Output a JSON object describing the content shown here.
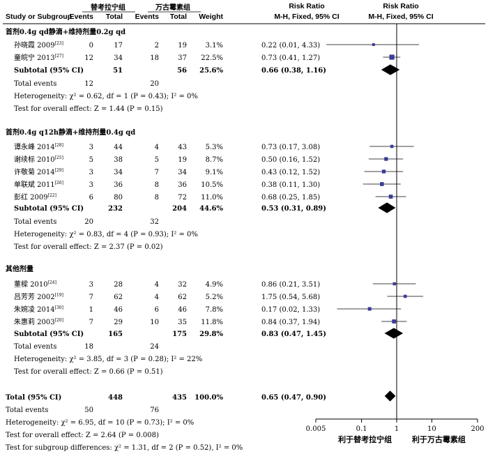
{
  "chart_data": {
    "type": "forest",
    "columns": {
      "top_left_group": "替考拉宁组",
      "top_right_group": "万古霉素组",
      "study": "Study or Subgroup",
      "events1": "Events",
      "total1": "Total",
      "events2": "Events",
      "total2": "Total",
      "weight": "Weight",
      "rr_text_top": "Risk Ratio",
      "rr_text_sub": "M-H, Fixed, 95% CI",
      "rr_plot_top": "Risk Ratio",
      "rr_plot_sub": "M-H, Fixed, 95% CI"
    },
    "subgroups": [
      {
        "title": "首剂0.4g qd静滴+维持剂量0.2g qd",
        "studies": [
          {
            "name": "孙晓霞 2009",
            "ref": "[23]",
            "e1": "0",
            "n1": "17",
            "e2": "2",
            "n2": "19",
            "weight": "3.1%",
            "ci": "0.22 (0.01, 4.33)",
            "rr": 0.22,
            "lo": 0.01,
            "hi": 4.33,
            "w": 3.1
          },
          {
            "name": "童皖宁 2013",
            "ref": "[27]",
            "e1": "12",
            "n1": "34",
            "e2": "18",
            "n2": "37",
            "weight": "22.5%",
            "ci": "0.73 (0.41, 1.27)",
            "rr": 0.73,
            "lo": 0.41,
            "hi": 1.27,
            "w": 22.5
          }
        ],
        "subtotal": {
          "label": "Subtotal (95% CI)",
          "n1": "51",
          "n2": "56",
          "weight": "25.6%",
          "ci": "0.66 (0.38, 1.16)",
          "rr": 0.66,
          "lo": 0.38,
          "hi": 1.16
        },
        "total_events": {
          "label": "Total events",
          "e1": "12",
          "e2": "20"
        },
        "heterogeneity": "Heterogeneity: χ² = 0.62, df = 1 (P = 0.43); I² = 0%",
        "overall_effect": "Test for overall effect: Z = 1.44 (P = 0.15)"
      },
      {
        "title": "首剂0.4g q12h静滴+维持剂量0.4g qd",
        "studies": [
          {
            "name": "谭永峰 2014",
            "ref": "[28]",
            "e1": "3",
            "n1": "44",
            "e2": "4",
            "n2": "43",
            "weight": "5.3%",
            "ci": "0.73 (0.17, 3.08)",
            "rr": 0.73,
            "lo": 0.17,
            "hi": 3.08,
            "w": 5.3
          },
          {
            "name": "谢续标 2010",
            "ref": "[25]",
            "e1": "5",
            "n1": "38",
            "e2": "5",
            "n2": "19",
            "weight": "8.7%",
            "ci": "0.50 (0.16, 1.52)",
            "rr": 0.5,
            "lo": 0.16,
            "hi": 1.52,
            "w": 8.7
          },
          {
            "name": "许敬菊 2014",
            "ref": "[29]",
            "e1": "3",
            "n1": "34",
            "e2": "7",
            "n2": "34",
            "weight": "9.1%",
            "ci": "0.43 (0.12, 1.52)",
            "rr": 0.43,
            "lo": 0.12,
            "hi": 1.52,
            "w": 9.1
          },
          {
            "name": "单联斌 2011",
            "ref": "[26]",
            "e1": "3",
            "n1": "36",
            "e2": "8",
            "n2": "36",
            "weight": "10.5%",
            "ci": "0.38 (0.11, 1.30)",
            "rr": 0.38,
            "lo": 0.11,
            "hi": 1.3,
            "w": 10.5
          },
          {
            "name": "彭红 2009",
            "ref": "[22]",
            "e1": "6",
            "n1": "80",
            "e2": "8",
            "n2": "72",
            "weight": "11.0%",
            "ci": "0.68 (0.25, 1.85)",
            "rr": 0.68,
            "lo": 0.25,
            "hi": 1.85,
            "w": 11.0
          }
        ],
        "subtotal": {
          "label": "Subtotal (95% CI)",
          "n1": "232",
          "n2": "204",
          "weight": "44.6%",
          "ci": "0.53 (0.31, 0.89)",
          "rr": 0.53,
          "lo": 0.31,
          "hi": 0.89
        },
        "total_events": {
          "label": "Total events",
          "e1": "20",
          "e2": "32"
        },
        "heterogeneity": "Heterogeneity: χ² = 0.83, df = 4 (P = 0.93); I² = 0%",
        "overall_effect": "Test for overall effect: Z = 2.37 (P = 0.02)"
      },
      {
        "title": "其他剂量",
        "studies": [
          {
            "name": "董樑 2010",
            "ref": "[24]",
            "e1": "3",
            "n1": "28",
            "e2": "4",
            "n2": "32",
            "weight": "4.9%",
            "ci": "0.86 (0.21, 3.51)",
            "rr": 0.86,
            "lo": 0.21,
            "hi": 3.51,
            "w": 4.9
          },
          {
            "name": "吕芳芳 2002",
            "ref": "[19]",
            "e1": "7",
            "n1": "62",
            "e2": "4",
            "n2": "62",
            "weight": "5.2%",
            "ci": "1.75 (0.54, 5.68)",
            "rr": 1.75,
            "lo": 0.54,
            "hi": 5.68,
            "w": 5.2
          },
          {
            "name": "朱婉凌 2014",
            "ref": "[30]",
            "e1": "1",
            "n1": "46",
            "e2": "6",
            "n2": "46",
            "weight": "7.8%",
            "ci": "0.17 (0.02, 1.33)",
            "rr": 0.17,
            "lo": 0.02,
            "hi": 1.33,
            "w": 7.8
          },
          {
            "name": "朱惠莉 2003",
            "ref": "[20]",
            "e1": "7",
            "n1": "29",
            "e2": "10",
            "n2": "35",
            "weight": "11.8%",
            "ci": "0.84 (0.37, 1.94)",
            "rr": 0.84,
            "lo": 0.37,
            "hi": 1.94,
            "w": 11.8
          }
        ],
        "subtotal": {
          "label": "Subtotal (95% CI)",
          "n1": "165",
          "n2": "175",
          "weight": "29.8%",
          "ci": "0.83 (0.47, 1.45)",
          "rr": 0.83,
          "lo": 0.47,
          "hi": 1.45
        },
        "total_events": {
          "label": "Total events",
          "e1": "18",
          "e2": "24"
        },
        "heterogeneity": "Heterogeneity: χ² = 3.85, df = 3 (P = 0.28); I² = 22%",
        "overall_effect": "Test for overall effect: Z = 0.66 (P = 0.51)"
      }
    ],
    "total": {
      "label": "Total (95% CI)",
      "n1": "448",
      "n2": "435",
      "weight": "100.0%",
      "ci": "0.65 (0.47, 0.90)",
      "rr": 0.65,
      "lo": 0.47,
      "hi": 0.9
    },
    "total_events": {
      "label": "Total events",
      "e1": "50",
      "e2": "76"
    },
    "footer": [
      "Heterogeneity: χ² = 6.95, df = 10 (P = 0.73); I² = 0%",
      "Test for overall effect: Z = 2.64 (P = 0.008)",
      "Test for subgroup differences: χ² = 1.31, df = 2 (P = 0.52), I² = 0%"
    ],
    "axis": {
      "scale": "log",
      "range": [
        0.005,
        200
      ],
      "ticks": [
        0.005,
        0.1,
        1,
        10,
        200
      ],
      "tick_labels": [
        "0.005",
        "0.1",
        "1",
        "10",
        "200"
      ],
      "favours_left": "利于替考拉宁组",
      "favours_right": "利于万古霉素组"
    },
    "colors": {
      "study_marker": "#3a3a9a",
      "diamond": "#000000",
      "line": "#000000"
    }
  }
}
